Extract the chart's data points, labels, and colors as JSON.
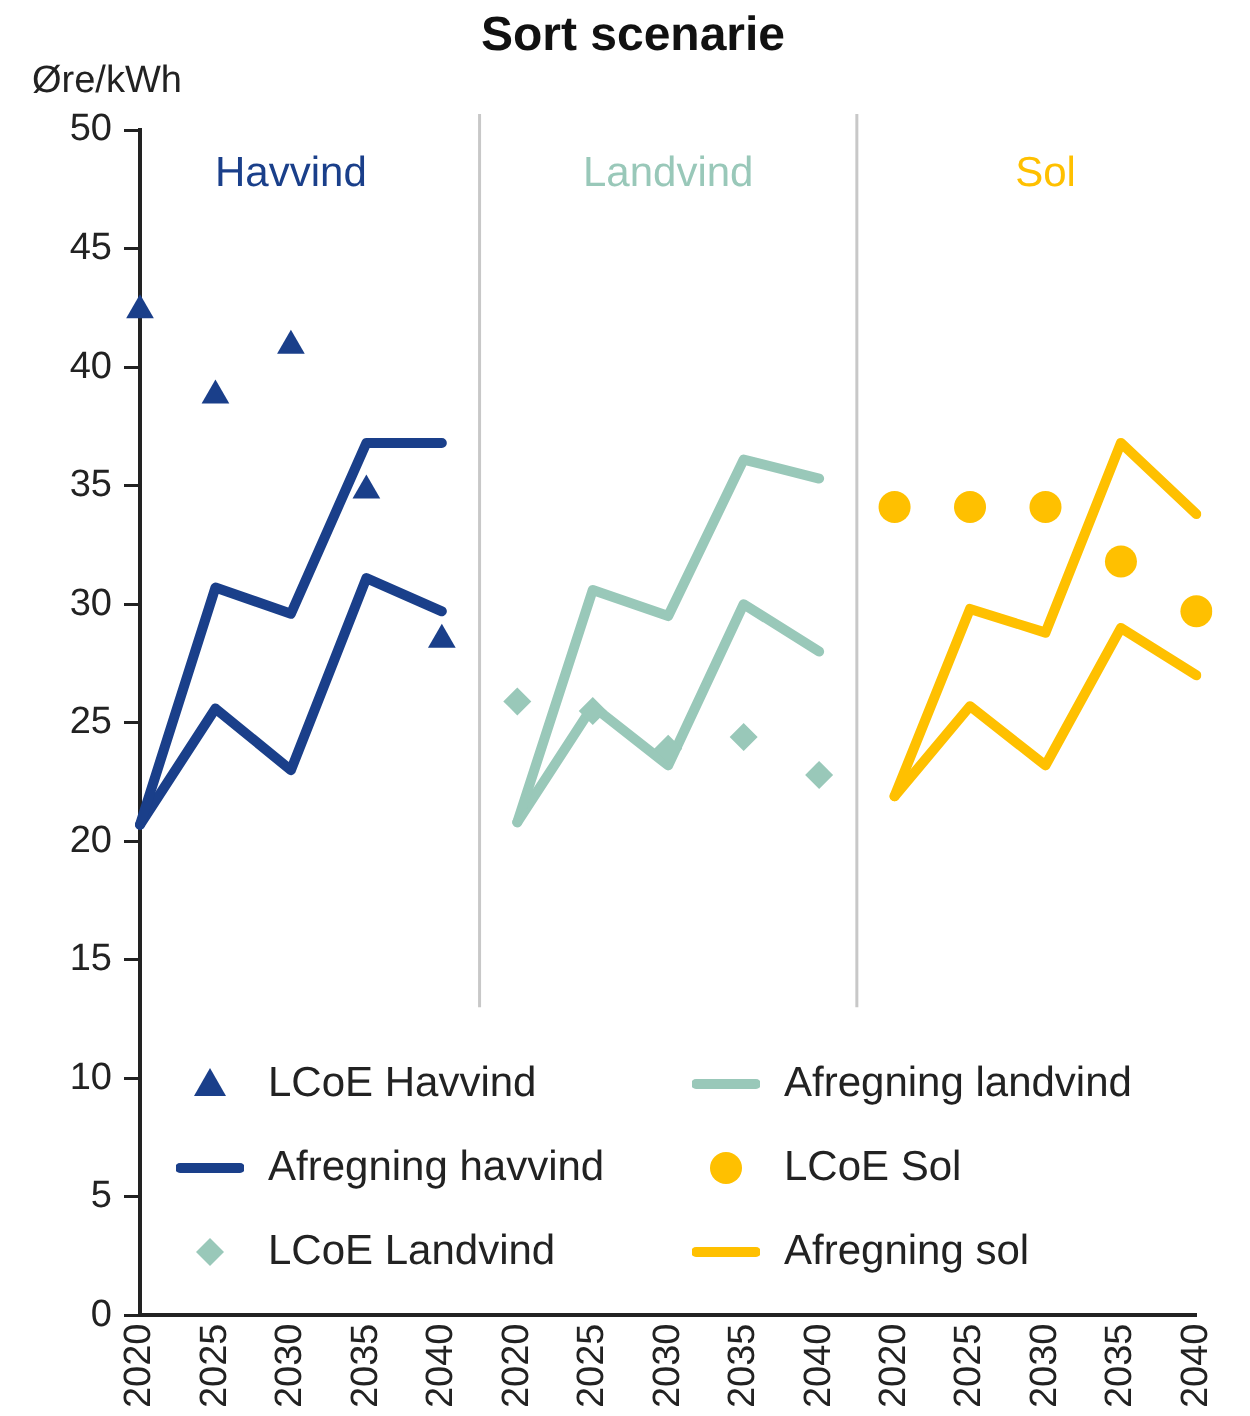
{
  "chart_data": {
    "type": "line",
    "title": "Sort scenarie",
    "ylabel": "Øre/kWh",
    "categories": [
      "2020",
      "2025",
      "2030",
      "2035",
      "2040",
      "2020",
      "2025",
      "2030",
      "2035",
      "2040",
      "2020",
      "2025",
      "2030",
      "2035",
      "2040"
    ],
    "ylim": [
      0,
      50
    ],
    "yticks": [
      0,
      5,
      10,
      15,
      20,
      25,
      30,
      35,
      40,
      45,
      50
    ],
    "grid": false,
    "legend": "bottom",
    "annotations": [
      "Havvind",
      "Landvind",
      "Sol"
    ],
    "series": [
      {
        "name": "LCoE Havvind",
        "type": "scatter",
        "marker": "triangle",
        "color": "#1a3f8a",
        "values": [
          42.4,
          38.8,
          40.9,
          34.8,
          28.5,
          null,
          null,
          null,
          null,
          null,
          null,
          null,
          null,
          null,
          null
        ]
      },
      {
        "name": "Afregning havvind",
        "type": "line",
        "marker": "none",
        "color": "#1a3f8a",
        "values": [
          20.7,
          30.7,
          29.6,
          36.8,
          36.8,
          null,
          null,
          null,
          null,
          null,
          null,
          null,
          null,
          null,
          null
        ]
      },
      {
        "type": "line",
        "marker": "none",
        "color": "#1a3f8a",
        "values": [
          20.7,
          25.6,
          23.0,
          31.1,
          29.7,
          null,
          null,
          null,
          null,
          null,
          null,
          null,
          null,
          null,
          null
        ]
      },
      {
        "name": "LCoE Landvind",
        "type": "scatter",
        "marker": "diamond",
        "color": "#99c8b9",
        "values": [
          null,
          null,
          null,
          null,
          null,
          25.9,
          25.5,
          23.9,
          24.4,
          22.8,
          null,
          null,
          null,
          null,
          null
        ]
      },
      {
        "name": "Afregning landvind",
        "type": "line",
        "marker": "none",
        "color": "#99c8b9",
        "values": [
          null,
          null,
          null,
          null,
          null,
          20.8,
          30.6,
          29.5,
          36.1,
          35.3,
          null,
          null,
          null,
          null,
          null
        ]
      },
      {
        "type": "line",
        "marker": "none",
        "color": "#99c8b9",
        "values": [
          null,
          null,
          null,
          null,
          null,
          20.8,
          25.7,
          23.2,
          30.0,
          28.0,
          null,
          null,
          null,
          null,
          null
        ]
      },
      {
        "name": "LCoE Sol",
        "type": "scatter",
        "marker": "circle",
        "color": "#ffc000",
        "values": [
          null,
          null,
          null,
          null,
          null,
          null,
          null,
          null,
          null,
          null,
          34.1,
          34.1,
          34.1,
          31.8,
          29.7
        ]
      },
      {
        "name": "Afregning sol",
        "type": "line",
        "marker": "none",
        "color": "#ffc000",
        "values": [
          null,
          null,
          null,
          null,
          null,
          null,
          null,
          null,
          null,
          null,
          21.9,
          29.8,
          28.8,
          36.8,
          33.8
        ]
      },
      {
        "type": "line",
        "marker": "none",
        "color": "#ffc000",
        "values": [
          null,
          null,
          null,
          null,
          null,
          null,
          null,
          null,
          null,
          null,
          21.9,
          25.7,
          23.2,
          29.0,
          27.0
        ]
      }
    ]
  }
}
